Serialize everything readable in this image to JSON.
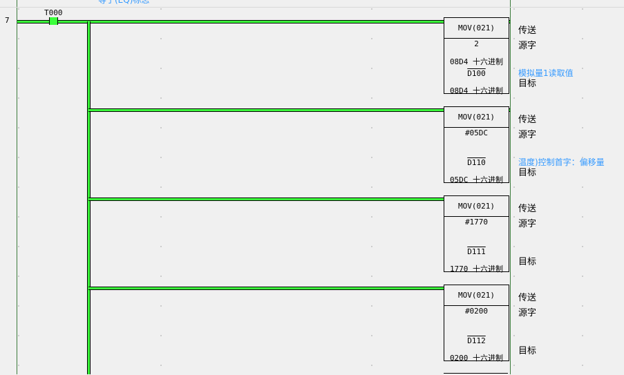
{
  "top_comment": "等于(EQ)标志",
  "rung_number": "7",
  "contact": {
    "label": "T000"
  },
  "blocks": [
    {
      "instr": "MOV(021)",
      "source": "2",
      "source_value": "08D4 十六进制",
      "dest": "D100",
      "dest_value": "08D4 十六进制",
      "labels": [
        "传送",
        "源字",
        "目标"
      ],
      "comment": "模拟量1读取值"
    },
    {
      "instr": "MOV(021)",
      "source": "#05DC",
      "source_value": "",
      "dest": "D110",
      "dest_value": "05DC 十六进制",
      "labels": [
        "传送",
        "源字",
        "目标"
      ],
      "comment": "温度)控制首字：偏移量"
    },
    {
      "instr": "MOV(021)",
      "source": "#1770",
      "source_value": "",
      "dest": "D111",
      "dest_value": "1770 十六进制",
      "labels": [
        "传送",
        "源字",
        "目标"
      ],
      "comment": ""
    },
    {
      "instr": "MOV(021)",
      "source": "#0200",
      "source_value": "",
      "dest": "D112",
      "dest_value": "0200 十六进制",
      "labels": [
        "传送",
        "源字",
        "目标"
      ],
      "comment": ""
    }
  ],
  "colors": {
    "rail": "#3cff3c",
    "comment": "#3399ff"
  }
}
